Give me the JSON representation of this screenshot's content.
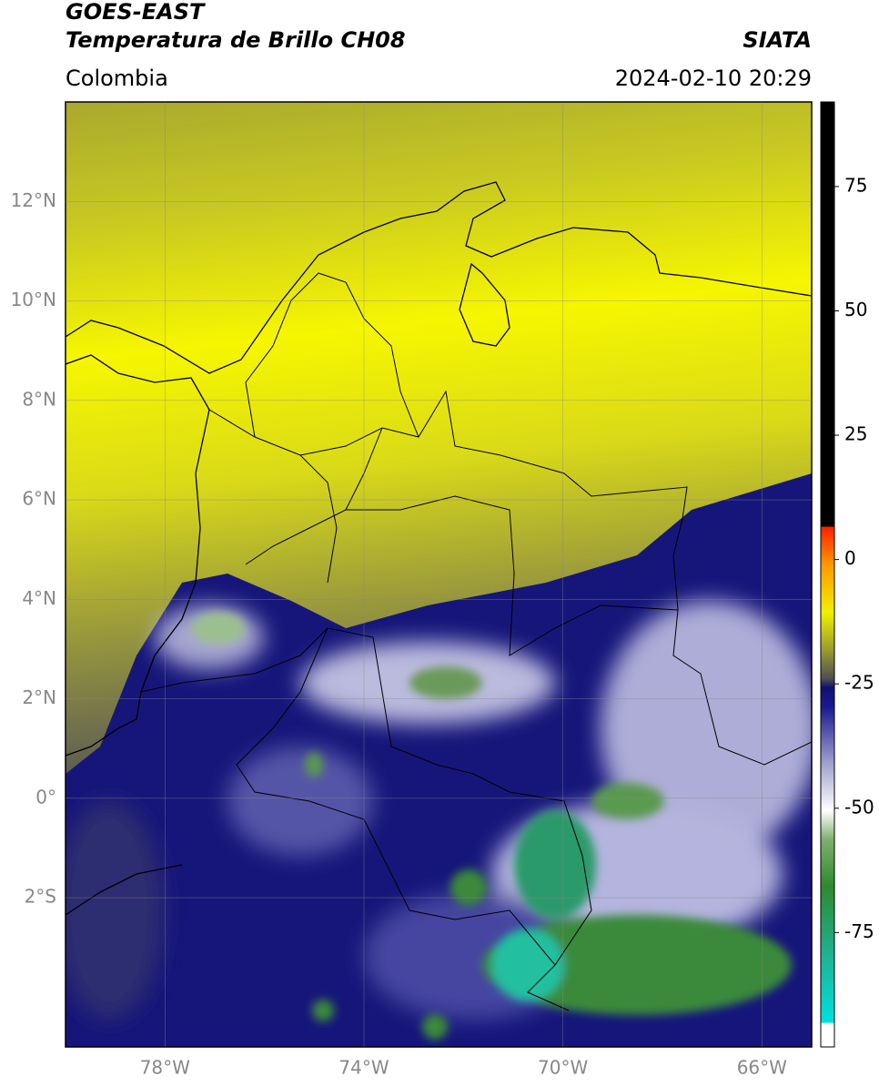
{
  "header": {
    "title": "GOES-EAST",
    "subtitle": "Temperatura de Brillo CH08",
    "region": "Colombia",
    "source": "SIATA",
    "timestamp": "2024-02-10 20:29"
  },
  "map": {
    "lonlim": [
      -80,
      -65
    ],
    "latlim": [
      -5,
      14
    ],
    "lon_ticks": [
      {
        "value": -78,
        "label": "78°W"
      },
      {
        "value": -74,
        "label": "74°W"
      },
      {
        "value": -70,
        "label": "70°W"
      },
      {
        "value": -66,
        "label": "66°W"
      }
    ],
    "lat_ticks": [
      {
        "value": 12,
        "label": "12°N"
      },
      {
        "value": 10,
        "label": "10°N"
      },
      {
        "value": 8,
        "label": "8°N"
      },
      {
        "value": 6,
        "label": "6°N"
      },
      {
        "value": 4,
        "label": "4°N"
      },
      {
        "value": 2,
        "label": "2°N"
      },
      {
        "value": 0,
        "label": "0°"
      },
      {
        "value": -2,
        "label": "2°S"
      }
    ],
    "grid": true
  },
  "colorbar": {
    "range": [
      -98,
      92
    ],
    "ticks": [
      75,
      50,
      25,
      0,
      -25,
      -50,
      -75
    ]
  }
}
